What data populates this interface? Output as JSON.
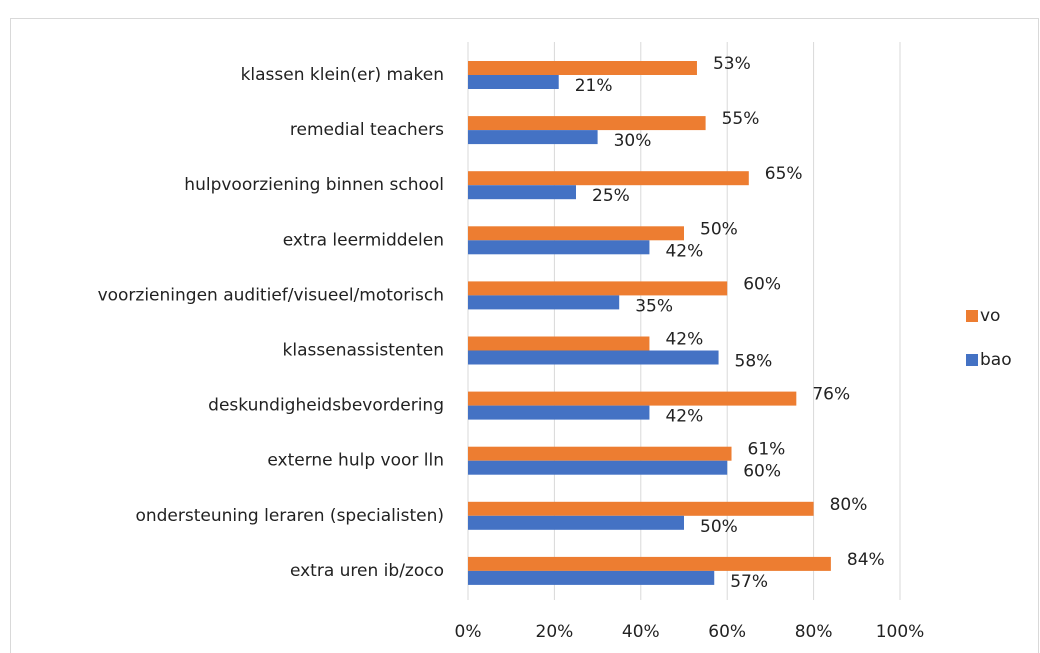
{
  "chart_data": {
    "type": "hbar",
    "categories": [
      "klassen klein(er) maken",
      "remedial teachers",
      "hulpvoorziening binnen school",
      "extra leermiddelen",
      "voorzieningen auditief/visueel/motorisch",
      "klassenassistenten",
      "deskundigheidsbevordering",
      "externe hulp voor lln",
      "ondersteuning leraren (specialisten)",
      "extra uren ib/zoco"
    ],
    "series": [
      {
        "name": "vo",
        "color": "#ED7D31",
        "values": [
          53,
          55,
          65,
          50,
          60,
          42,
          76,
          61,
          80,
          84
        ],
        "value_labels": [
          "53%",
          "55%",
          "65%",
          "50%",
          "60%",
          "42%",
          "76%",
          "61%",
          "80%",
          "84%"
        ]
      },
      {
        "name": "bao",
        "color": "#4472C4",
        "values": [
          21,
          30,
          25,
          42,
          35,
          58,
          42,
          60,
          50,
          57
        ],
        "value_labels": [
          "21%",
          "30%",
          "25%",
          "42%",
          "35%",
          "58%",
          "42%",
          "60%",
          "50%",
          "57%"
        ]
      }
    ],
    "xlim": [
      0,
      100
    ],
    "xticks": [
      {
        "value": 0,
        "label": "0%"
      },
      {
        "value": 20,
        "label": "20%"
      },
      {
        "value": 40,
        "label": "40%"
      },
      {
        "value": 60,
        "label": "60%"
      },
      {
        "value": 80,
        "label": "80%"
      },
      {
        "value": 100,
        "label": "100%"
      }
    ],
    "grid": true,
    "legend": "right"
  }
}
